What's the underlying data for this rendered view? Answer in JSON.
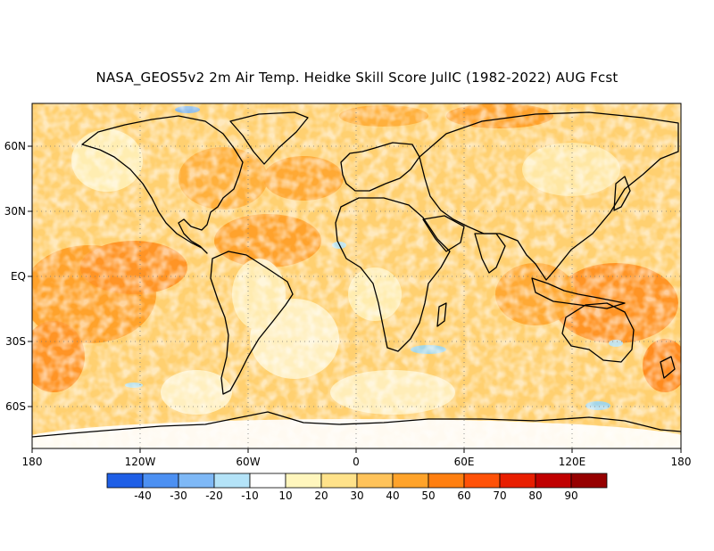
{
  "title": "NASA_GEOS5v2 2m Air Temp. Heidke Skill Score JulIC (1982-2022) AUG Fcst",
  "map": {
    "lat_ticks": [
      "60N",
      "30N",
      "EQ",
      "30S",
      "60S"
    ],
    "lon_ticks": [
      "180",
      "120W",
      "60W",
      "0",
      "60E",
      "120E",
      "180"
    ],
    "lat_range": [
      -80,
      80
    ],
    "lon_range": [
      -180,
      180
    ],
    "grid": "dotted"
  },
  "legend": {
    "labels": [
      "-40",
      "-30",
      "-20",
      "-10",
      "10",
      "20",
      "30",
      "40",
      "50",
      "60",
      "70",
      "80",
      "90"
    ],
    "colors": [
      "#1f5fe6",
      "#4c90f2",
      "#7eb8f6",
      "#b4e3f8",
      "#ffffff",
      "#fff6bd",
      "#ffe28a",
      "#ffc35a",
      "#ffa32a",
      "#ff7f10",
      "#ff5208",
      "#e81e00",
      "#c00000",
      "#960000"
    ]
  }
}
